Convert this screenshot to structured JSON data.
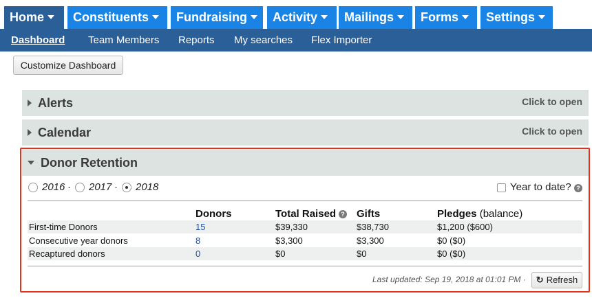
{
  "topnav": {
    "tabs": [
      {
        "label": "Home",
        "active": true
      },
      {
        "label": "Constituents",
        "active": false
      },
      {
        "label": "Fundraising",
        "active": false
      },
      {
        "label": "Activity",
        "active": false
      },
      {
        "label": "Mailings",
        "active": false
      },
      {
        "label": "Forms",
        "active": false
      },
      {
        "label": "Settings",
        "active": false
      }
    ]
  },
  "subnav": {
    "items": [
      {
        "label": "Dashboard",
        "active": true
      },
      {
        "label": "Team Members",
        "active": false
      },
      {
        "label": "Reports",
        "active": false
      },
      {
        "label": "My searches",
        "active": false
      },
      {
        "label": "Flex Importer",
        "active": false
      }
    ]
  },
  "customize_label": "Customize Dashboard",
  "panels": {
    "alerts": {
      "title": "Alerts",
      "action": "Click to open"
    },
    "calendar": {
      "title": "Calendar",
      "action": "Click to open"
    },
    "retention": {
      "title": "Donor Retention"
    }
  },
  "retention": {
    "years": [
      {
        "label": "2016",
        "selected": false
      },
      {
        "label": "2017",
        "selected": false
      },
      {
        "label": "2018",
        "selected": true
      }
    ],
    "separator": "·",
    "ytd_label": "Year to date?",
    "ytd_checked": false,
    "headers": {
      "donors": "Donors",
      "total_raised": "Total Raised",
      "gifts": "Gifts",
      "pledges": "Pledges",
      "pledges_suffix": "(balance)"
    },
    "rows": [
      {
        "label": "First-time Donors",
        "donors": "15",
        "total_raised": "$39,330",
        "gifts": "$38,730",
        "pledges": "$1,200 ($600)"
      },
      {
        "label": "Consecutive year donors",
        "donors": "8",
        "total_raised": "$3,300",
        "gifts": "$3,300",
        "pledges": "$0 ($0)"
      },
      {
        "label": "Recaptured donors",
        "donors": "0",
        "total_raised": "$0",
        "gifts": "$0",
        "pledges": "$0 ($0)"
      }
    ],
    "last_updated": "Last updated: Sep 19, 2018 at 01:01 PM ·",
    "refresh_label": "Refresh"
  },
  "colors": {
    "nav_tab": "#1a84e6",
    "nav_active": "#2b5f98",
    "panel_header": "#dde3e1",
    "highlight_border": "#e8301d",
    "link": "#1a4fa8"
  }
}
